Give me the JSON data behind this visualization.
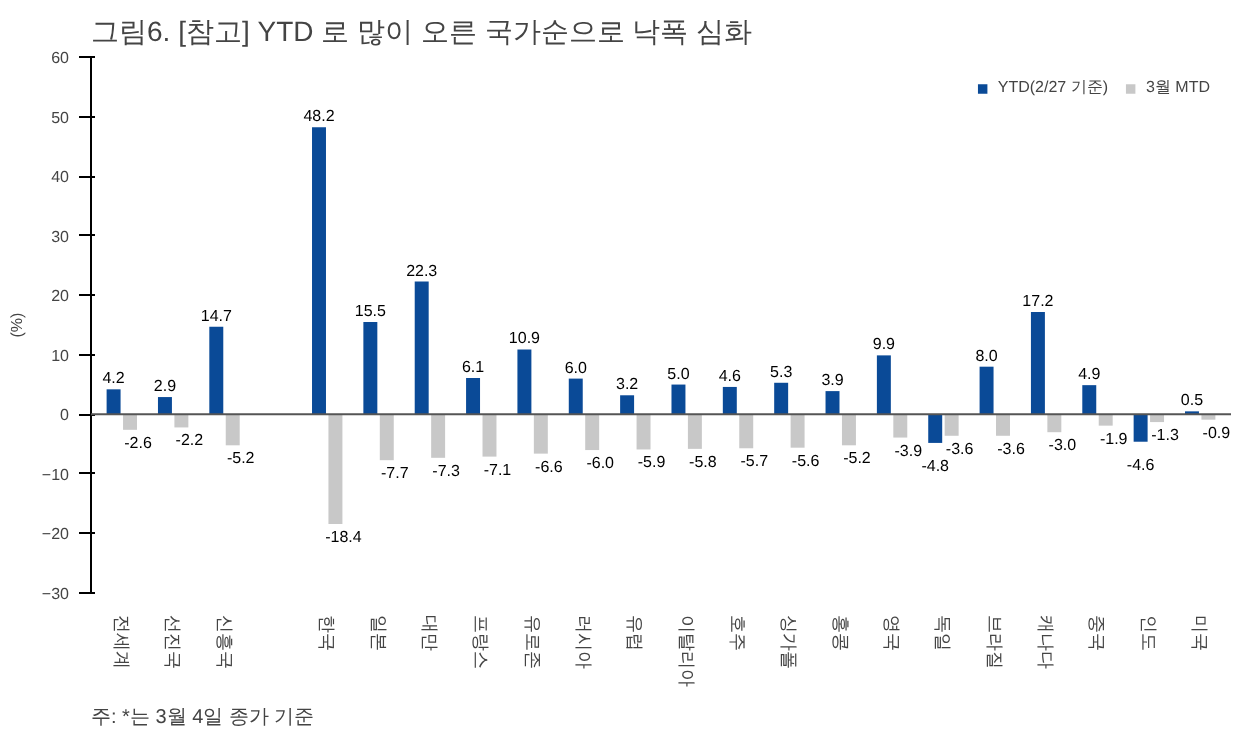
{
  "chart_data": {
    "type": "bar",
    "title": "그림6. [참고] YTD 로 많이 오른 국가순으로 낙폭 심화",
    "ylabel": "(%)",
    "categories": [
      "전세계",
      "선진국",
      "신흥국",
      null,
      "한국",
      "일본",
      "대만",
      "프랑스",
      "유로존",
      "러시아",
      "유럽",
      "이탈리아",
      "호주",
      "싱가폴",
      "홍콩",
      "영국",
      "독일",
      "브라질",
      "캐나다",
      "중국",
      "인도",
      "미국"
    ],
    "series": [
      {
        "name": "YTD(2/27 기준)",
        "color": "#0a4a97",
        "values": [
          4.2,
          2.9,
          14.7,
          null,
          48.2,
          15.5,
          22.3,
          6.1,
          10.9,
          6.0,
          3.2,
          5.0,
          4.6,
          5.3,
          3.9,
          9.9,
          -4.8,
          8.0,
          17.2,
          4.9,
          -4.6,
          0.5
        ],
        "value_labels": [
          "4.2",
          "2.9",
          "14.7",
          null,
          "48.2",
          "15.5",
          "22.3",
          "6.1",
          "10.9",
          "6.0",
          "3.2",
          "5.0",
          "4.6",
          "5.3",
          "3.9",
          "9.9",
          "-4.8",
          "8.0",
          "17.2",
          "4.9",
          "-4.6",
          "0.5"
        ]
      },
      {
        "name": "3월 MTD",
        "color": "#c8c8c8",
        "values": [
          -2.6,
          -2.2,
          -5.2,
          null,
          -18.4,
          -7.7,
          -7.3,
          -7.1,
          -6.6,
          -6.0,
          -5.9,
          -5.8,
          -5.7,
          -5.6,
          -5.2,
          -3.9,
          -3.6,
          -3.6,
          -3.0,
          -1.9,
          -1.3,
          -0.9
        ],
        "value_labels": [
          "-2.6",
          "-2.2",
          "-5.2",
          null,
          "-18.4",
          "-7.7",
          "-7.3",
          "-7.1",
          "-6.6",
          "-6.0",
          "-5.9",
          "-5.8",
          "-5.7",
          "-5.6",
          "-5.2",
          "-3.9",
          "-3.6",
          "-3.6",
          "-3.0",
          "-1.9",
          "-1.3",
          "-0.9"
        ]
      }
    ],
    "ylim": [
      -30,
      60
    ],
    "yticks": [
      -30,
      -20,
      -10,
      0,
      10,
      20,
      30,
      40,
      50,
      60
    ],
    "legend": "top right",
    "annotations": [
      "주: *는 3월 4일 종가 기준"
    ]
  }
}
